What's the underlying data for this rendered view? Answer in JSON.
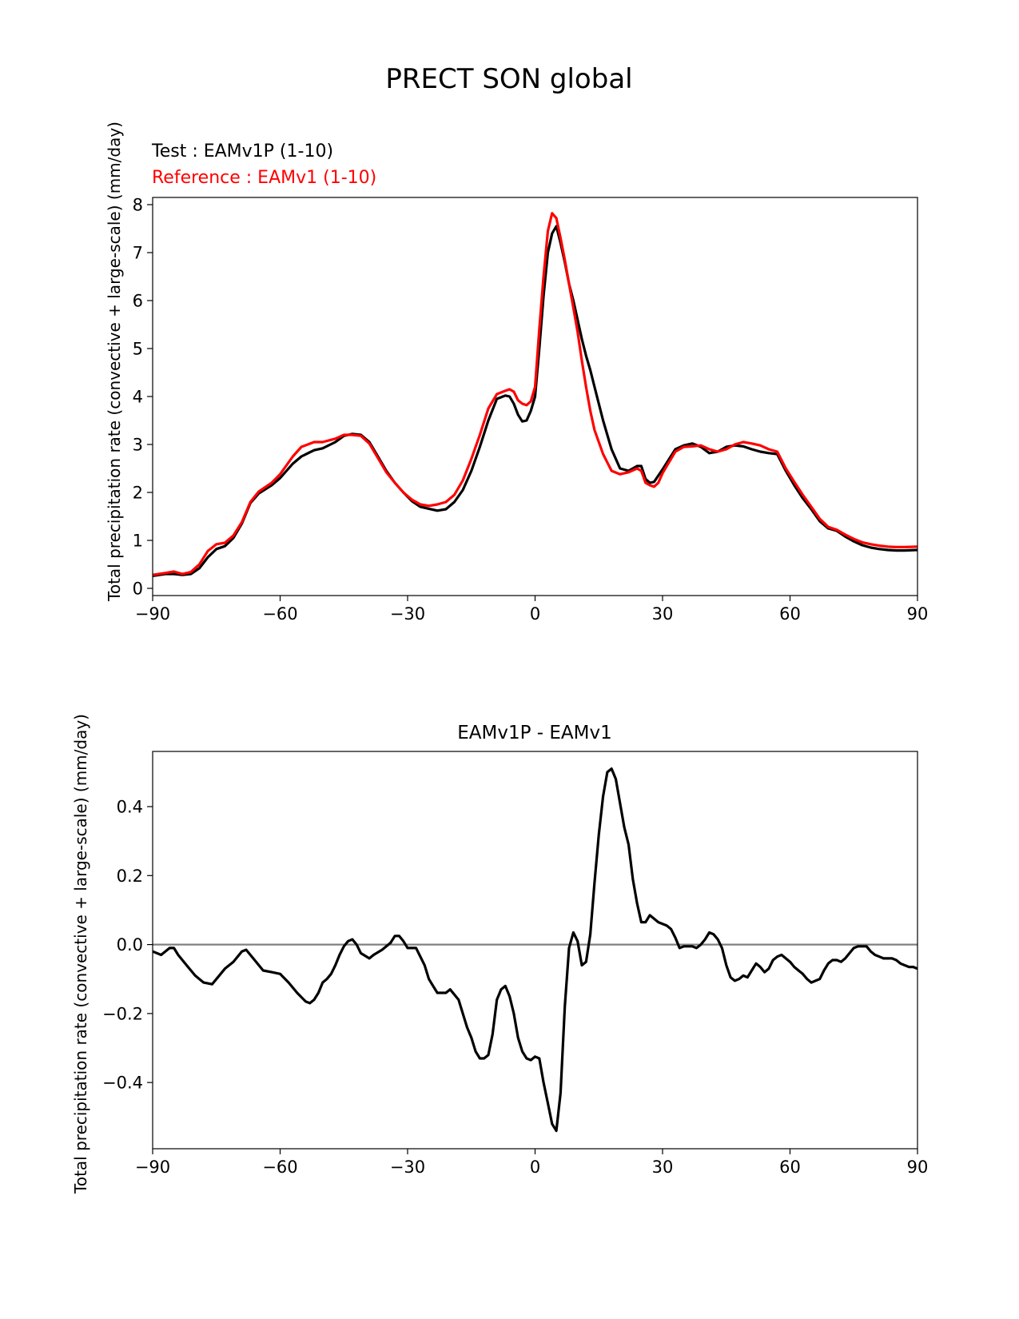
{
  "figure": {
    "title": "PRECT SON global"
  },
  "chart_data": [
    {
      "type": "line",
      "legend_labels": [
        "Test : EAMv1P (1-10)",
        "Reference : EAMv1 (1-10)"
      ],
      "legend_placement": "top-left",
      "xlabel": "",
      "ylabel": "Total precipitation rate (convective + large-scale) (mm/day)",
      "xlim": [
        -90,
        90
      ],
      "ylim": [
        -0.15,
        8.15
      ],
      "xticks": [
        -90,
        -60,
        -30,
        0,
        30,
        60,
        90
      ],
      "yticks": [
        0,
        1,
        2,
        3,
        4,
        5,
        6,
        7,
        8
      ],
      "grid": false,
      "series": [
        {
          "name": "Test : EAMv1P (1-10)",
          "color": "#000000",
          "x": [
            -90,
            -87,
            -85,
            -83,
            -81,
            -79,
            -77,
            -75,
            -73,
            -71,
            -69,
            -67,
            -65,
            -62,
            -60,
            -57,
            -55,
            -52,
            -50,
            -47,
            -45,
            -43,
            -41,
            -39,
            -37,
            -35,
            -33,
            -31,
            -29,
            -27,
            -25,
            -23,
            -21,
            -19,
            -17,
            -15,
            -13,
            -11,
            -9,
            -7,
            -6,
            -5,
            -4,
            -3,
            -2,
            -1,
            0,
            1,
            2,
            3,
            4,
            5,
            6,
            7,
            8,
            9,
            10,
            11,
            12,
            13,
            14,
            16,
            18,
            20,
            22,
            24,
            25,
            26,
            27,
            28,
            29,
            30,
            31,
            33,
            35,
            37,
            39,
            41,
            43,
            45,
            47,
            49,
            51,
            53,
            55,
            57,
            59,
            61,
            63,
            65,
            67,
            69,
            71,
            73,
            75,
            77,
            79,
            81,
            83,
            85,
            87,
            90
          ],
          "y": [
            0.26,
            0.3,
            0.3,
            0.28,
            0.3,
            0.42,
            0.65,
            0.82,
            0.88,
            1.05,
            1.35,
            1.78,
            1.98,
            2.15,
            2.3,
            2.6,
            2.75,
            2.88,
            2.92,
            3.05,
            3.18,
            3.22,
            3.2,
            3.05,
            2.75,
            2.45,
            2.2,
            2.0,
            1.82,
            1.7,
            1.66,
            1.62,
            1.65,
            1.8,
            2.05,
            2.45,
            2.95,
            3.5,
            3.95,
            4.02,
            4.0,
            3.85,
            3.62,
            3.48,
            3.5,
            3.7,
            4.0,
            5.0,
            6.1,
            7.0,
            7.4,
            7.55,
            7.2,
            6.8,
            6.35,
            6.0,
            5.6,
            5.2,
            4.85,
            4.55,
            4.2,
            3.5,
            2.9,
            2.5,
            2.45,
            2.55,
            2.55,
            2.28,
            2.2,
            2.22,
            2.35,
            2.48,
            2.62,
            2.9,
            2.98,
            3.02,
            2.95,
            2.82,
            2.85,
            2.95,
            2.98,
            2.96,
            2.9,
            2.85,
            2.82,
            2.8,
            2.45,
            2.15,
            1.88,
            1.65,
            1.4,
            1.25,
            1.2,
            1.08,
            0.98,
            0.9,
            0.85,
            0.82,
            0.8,
            0.79,
            0.79,
            0.8
          ]
        },
        {
          "name": "Reference : EAMv1 (1-10)",
          "color": "#ff0000",
          "x": [
            -90,
            -87,
            -85,
            -83,
            -81,
            -79,
            -77,
            -75,
            -73,
            -71,
            -69,
            -67,
            -65,
            -62,
            -60,
            -57,
            -55,
            -52,
            -50,
            -47,
            -45,
            -43,
            -41,
            -39,
            -37,
            -35,
            -33,
            -31,
            -29,
            -27,
            -25,
            -23,
            -21,
            -19,
            -17,
            -15,
            -13,
            -11,
            -9,
            -7,
            -6,
            -5,
            -4,
            -3,
            -2,
            -1,
            0,
            1,
            2,
            3,
            4,
            5,
            6,
            7,
            8,
            9,
            10,
            11,
            12,
            13,
            14,
            16,
            18,
            20,
            22,
            24,
            25,
            26,
            27,
            28,
            29,
            30,
            31,
            33,
            35,
            37,
            39,
            41,
            43,
            45,
            47,
            49,
            51,
            53,
            55,
            57,
            59,
            61,
            63,
            65,
            67,
            69,
            71,
            73,
            75,
            77,
            79,
            81,
            83,
            85,
            87,
            90
          ],
          "y": [
            0.28,
            0.32,
            0.35,
            0.3,
            0.34,
            0.5,
            0.78,
            0.92,
            0.95,
            1.1,
            1.38,
            1.8,
            2.02,
            2.2,
            2.38,
            2.75,
            2.95,
            3.05,
            3.05,
            3.12,
            3.2,
            3.2,
            3.18,
            3.02,
            2.72,
            2.42,
            2.2,
            2.0,
            1.85,
            1.75,
            1.72,
            1.75,
            1.8,
            1.95,
            2.25,
            2.7,
            3.2,
            3.75,
            4.05,
            4.12,
            4.15,
            4.1,
            3.92,
            3.85,
            3.82,
            3.9,
            4.2,
            5.4,
            6.5,
            7.45,
            7.82,
            7.72,
            7.3,
            6.85,
            6.35,
            5.85,
            5.35,
            4.75,
            4.2,
            3.7,
            3.3,
            2.8,
            2.45,
            2.38,
            2.42,
            2.5,
            2.45,
            2.2,
            2.15,
            2.12,
            2.2,
            2.4,
            2.55,
            2.85,
            2.95,
            2.96,
            2.98,
            2.9,
            2.85,
            2.9,
            3.0,
            3.05,
            3.02,
            2.98,
            2.9,
            2.85,
            2.5,
            2.22,
            1.95,
            1.7,
            1.45,
            1.28,
            1.22,
            1.12,
            1.03,
            0.96,
            0.92,
            0.89,
            0.87,
            0.86,
            0.86,
            0.87
          ]
        }
      ]
    },
    {
      "type": "line",
      "title": "EAMv1P - EAMv1",
      "xlabel": "",
      "ylabel": "Total precipitation rate (convective + large-scale) (mm/day)",
      "xlim": [
        -90,
        90
      ],
      "ylim": [
        -0.592,
        0.56
      ],
      "xticks": [
        -90,
        -60,
        -30,
        0,
        30,
        60,
        90
      ],
      "yticks": [
        -0.4,
        -0.2,
        0.0,
        0.2,
        0.4
      ],
      "ytick_labels": [
        "−0.4",
        "−0.2",
        "0.0",
        "0.2",
        "0.4"
      ],
      "reference_line": {
        "y": 0.0,
        "color": "#808080"
      },
      "grid": false,
      "series": [
        {
          "color": "#000000",
          "x": [
            -90,
            -88,
            -86,
            -85,
            -84,
            -82,
            -80,
            -78,
            -76,
            -75,
            -73,
            -71,
            -69,
            -68,
            -66,
            -64,
            -62,
            -60,
            -58,
            -56,
            -54,
            -53,
            -52,
            -51,
            -50,
            -49,
            -48,
            -47,
            -46,
            -45,
            -44,
            -43,
            -42,
            -41,
            -39,
            -38,
            -36,
            -34,
            -33,
            -32,
            -31,
            -30,
            -28,
            -26,
            -25,
            -24,
            -23,
            -21,
            -20,
            -18,
            -17,
            -16,
            -15,
            -14,
            -13,
            -12,
            -11,
            -10,
            -9,
            -8,
            -7,
            -6,
            -5,
            -4,
            -3,
            -2,
            -1,
            0,
            1,
            2,
            3,
            4,
            5,
            6,
            7,
            8,
            9,
            10,
            11,
            12,
            13,
            14,
            15,
            16,
            17,
            18,
            19,
            20,
            21,
            22,
            23,
            24,
            25,
            26,
            27,
            28,
            29,
            30,
            31,
            32,
            33,
            34,
            35,
            36,
            37,
            38,
            39,
            40,
            41,
            42,
            43,
            44,
            45,
            46,
            47,
            48,
            49,
            50,
            51,
            52,
            53,
            54,
            55,
            56,
            57,
            58,
            59,
            60,
            61,
            62,
            63,
            64,
            65,
            66,
            67,
            68,
            69,
            70,
            71,
            72,
            73,
            74,
            75,
            76,
            77,
            78,
            79,
            80,
            81,
            82,
            83,
            84,
            85,
            86,
            87,
            88,
            89,
            90
          ],
          "y": [
            -0.02,
            -0.03,
            -0.01,
            -0.01,
            -0.03,
            -0.06,
            -0.09,
            -0.11,
            -0.115,
            -0.1,
            -0.07,
            -0.05,
            -0.02,
            -0.015,
            -0.045,
            -0.075,
            -0.08,
            -0.085,
            -0.11,
            -0.14,
            -0.165,
            -0.17,
            -0.16,
            -0.14,
            -0.11,
            -0.1,
            -0.085,
            -0.06,
            -0.03,
            -0.005,
            0.01,
            0.015,
            0.0,
            -0.025,
            -0.04,
            -0.03,
            -0.015,
            0.005,
            0.025,
            0.025,
            0.01,
            -0.01,
            -0.01,
            -0.06,
            -0.1,
            -0.12,
            -0.14,
            -0.14,
            -0.13,
            -0.16,
            -0.2,
            -0.24,
            -0.27,
            -0.31,
            -0.33,
            -0.33,
            -0.32,
            -0.26,
            -0.16,
            -0.13,
            -0.12,
            -0.15,
            -0.2,
            -0.27,
            -0.31,
            -0.33,
            -0.335,
            -0.325,
            -0.33,
            -0.4,
            -0.46,
            -0.52,
            -0.54,
            -0.43,
            -0.18,
            -0.01,
            0.035,
            0.01,
            -0.06,
            -0.05,
            0.03,
            0.18,
            0.32,
            0.43,
            0.5,
            0.51,
            0.48,
            0.41,
            0.34,
            0.29,
            0.19,
            0.12,
            0.065,
            0.065,
            0.085,
            0.075,
            0.065,
            0.06,
            0.055,
            0.045,
            0.02,
            -0.01,
            -0.005,
            -0.005,
            -0.005,
            -0.01,
            0.0,
            0.015,
            0.035,
            0.03,
            0.015,
            -0.01,
            -0.06,
            -0.095,
            -0.105,
            -0.1,
            -0.09,
            -0.095,
            -0.075,
            -0.055,
            -0.065,
            -0.08,
            -0.07,
            -0.045,
            -0.035,
            -0.03,
            -0.04,
            -0.05,
            -0.065,
            -0.075,
            -0.085,
            -0.1,
            -0.11,
            -0.105,
            -0.1,
            -0.075,
            -0.055,
            -0.045,
            -0.045,
            -0.05,
            -0.04,
            -0.025,
            -0.01,
            -0.005,
            -0.005,
            -0.005,
            -0.02,
            -0.03,
            -0.035,
            -0.04,
            -0.04,
            -0.04,
            -0.045,
            -0.055,
            -0.06,
            -0.065,
            -0.065,
            -0.07
          ]
        }
      ]
    }
  ]
}
